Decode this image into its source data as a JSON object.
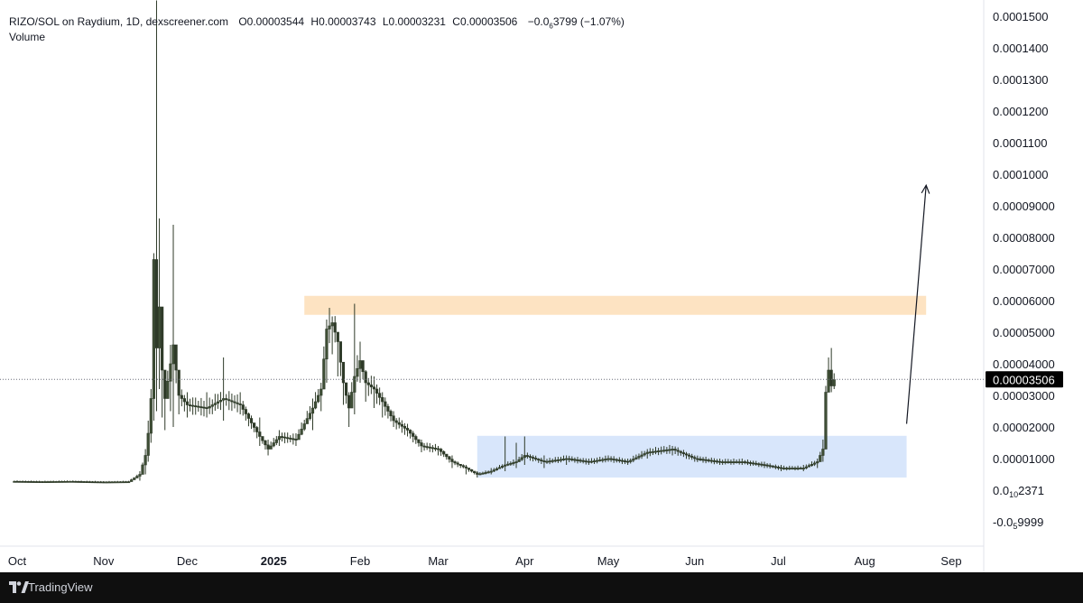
{
  "header": {
    "symbol": "RIZO/SOL on Raydium, 1D, dexscreener.com",
    "open_label": "O",
    "open_value": "0.00003544",
    "high_label": "H",
    "high_value": "0.00003743",
    "low_label": "L",
    "low_value": "0.00003231",
    "close_label": "C",
    "close_value": "0.00003506",
    "change_main": "−0.0",
    "change_sub": "6",
    "change_tail": "3799 (−1.07%)",
    "volume_label": "Volume"
  },
  "footer": {
    "brand": "TradingView"
  },
  "colors": {
    "candle": "#2e3a28",
    "candle_body_up": "#ffffff",
    "resistance_zone": "#fde3c2",
    "accumulation_zone": "#d8e6fb",
    "price_tag": "#000000",
    "background": "#ffffff"
  },
  "chart_data": {
    "type": "candlestick",
    "x_ticks": [
      {
        "label": "Oct",
        "date": "2024-10-01"
      },
      {
        "label": "Nov",
        "date": "2024-11-01"
      },
      {
        "label": "Dec",
        "date": "2024-12-01"
      },
      {
        "label": "2025",
        "date": "2025-01-01",
        "bold": true
      },
      {
        "label": "Feb",
        "date": "2025-02-01"
      },
      {
        "label": "Mar",
        "date": "2025-03-01"
      },
      {
        "label": "Apr",
        "date": "2025-04-01"
      },
      {
        "label": "May",
        "date": "2025-05-01"
      },
      {
        "label": "Jun",
        "date": "2025-06-01"
      },
      {
        "label": "Jul",
        "date": "2025-07-01"
      },
      {
        "label": "Aug",
        "date": "2025-08-01"
      },
      {
        "label": "Sep",
        "date": "2025-09-01"
      }
    ],
    "y_ticks": [
      {
        "label": "0.0001500",
        "value": 0.00015
      },
      {
        "label": "0.0001400",
        "value": 0.00014
      },
      {
        "label": "0.0001300",
        "value": 0.00013
      },
      {
        "label": "0.0001200",
        "value": 0.00012
      },
      {
        "label": "0.0001100",
        "value": 0.00011
      },
      {
        "label": "0.0001000",
        "value": 0.0001
      },
      {
        "label": "0.00009000",
        "value": 9e-05
      },
      {
        "label": "0.00008000",
        "value": 8e-05
      },
      {
        "label": "0.00007000",
        "value": 7e-05
      },
      {
        "label": "0.00006000",
        "value": 6e-05
      },
      {
        "label": "0.00005000",
        "value": 5e-05
      },
      {
        "label": "0.00004000",
        "value": 4e-05
      },
      {
        "label": "0.00003000",
        "value": 3e-05
      },
      {
        "label": "0.00002000",
        "value": 2e-05
      },
      {
        "label": "0.00001000",
        "value": 1e-05
      }
    ],
    "y_ticks_sub": [
      {
        "main": "0.0",
        "sub": "10",
        "tail": "2371",
        "value": 2.371e-10
      },
      {
        "main": "-0.0",
        "sub": "5",
        "tail": "9999",
        "value": -9.999e-06
      }
    ],
    "ylim": [
      -1.2e-05,
      0.000153
    ],
    "last_price": {
      "label": "0.00003506",
      "value": 3.506e-05
    },
    "zones": [
      {
        "name": "resistance",
        "x_start": "2025-01-12",
        "x_end": "2025-08-23",
        "y_low": 5.55e-05,
        "y_high": 6.15e-05
      },
      {
        "name": "accumulation",
        "x_start": "2025-03-15",
        "x_end": "2025-08-16",
        "y_low": 4e-06,
        "y_high": 1.72e-05
      }
    ],
    "arrow": {
      "from_date": "2025-08-16",
      "from_value": 2.1e-05,
      "to_date": "2025-08-23",
      "to_value": 9.65e-05
    },
    "series": [
      {
        "date": "2024-09-30",
        "value": 2.8e-06
      },
      {
        "date": "2024-10-10",
        "value": 2.7e-06
      },
      {
        "date": "2024-10-20",
        "value": 2.8e-06
      },
      {
        "date": "2024-11-01",
        "value": 2.6e-06
      },
      {
        "date": "2024-11-10",
        "value": 2.7e-06
      },
      {
        "date": "2024-11-14",
        "value": 5e-06,
        "low": 3e-06,
        "high": 6e-06
      },
      {
        "date": "2024-11-16",
        "value": 1.1e-05,
        "low": 5e-06,
        "high": 1.3e-05
      },
      {
        "date": "2024-11-17",
        "value": 1.8e-05,
        "low": 9e-06,
        "high": 2.2e-05
      },
      {
        "date": "2024-11-18",
        "value": 2.9e-05,
        "low": 1.5e-05,
        "high": 3.2e-05
      },
      {
        "date": "2024-11-19",
        "value": 7.3e-05,
        "low": 2.2e-05,
        "high": 7.5e-05
      },
      {
        "date": "2024-11-20",
        "value": 4.5e-05,
        "low": 2.5e-05,
        "high": 0.000155
      },
      {
        "date": "2024-11-21",
        "value": 5.8e-05,
        "low": 3.2e-05,
        "high": 8.6e-05
      },
      {
        "date": "2024-11-22",
        "value": 3.8e-05,
        "low": 2.3e-05,
        "high": 4.8e-05
      },
      {
        "date": "2024-11-23",
        "value": 2.9e-05,
        "low": 1.9e-05,
        "high": 3.6e-05
      },
      {
        "date": "2024-11-25",
        "value": 4e-05,
        "low": 2.5e-05,
        "high": 4.6e-05
      },
      {
        "date": "2024-11-26",
        "value": 4.6e-05,
        "low": 2e-05,
        "high": 8.4e-05
      },
      {
        "date": "2024-11-28",
        "value": 3e-05,
        "low": 2.4e-05,
        "high": 3.8e-05
      },
      {
        "date": "2024-12-01",
        "value": 2.7e-05,
        "low": 2.3e-05,
        "high": 3.1e-05
      },
      {
        "date": "2024-12-08",
        "value": 2.6e-05,
        "low": 2.3e-05,
        "high": 3.1e-05
      },
      {
        "date": "2024-12-14",
        "value": 2.9e-05,
        "low": 2.2e-05,
        "high": 4.2e-05
      },
      {
        "date": "2024-12-20",
        "value": 2.7e-05,
        "low": 2.4e-05,
        "high": 3.1e-05
      },
      {
        "date": "2024-12-27",
        "value": 1.7e-05,
        "low": 1.4e-05,
        "high": 2.3e-05
      },
      {
        "date": "2024-12-30",
        "value": 1.3e-05,
        "low": 1.1e-05,
        "high": 1.6e-05
      },
      {
        "date": "2025-01-03",
        "value": 1.7e-05,
        "low": 1.4e-05,
        "high": 1.9e-05
      },
      {
        "date": "2025-01-09",
        "value": 1.6e-05,
        "low": 1.4e-05,
        "high": 1.8e-05
      },
      {
        "date": "2025-01-15",
        "value": 2.6e-05,
        "low": 1.9e-05,
        "high": 2.9e-05
      },
      {
        "date": "2025-01-18",
        "value": 3.2e-05,
        "low": 2.5e-05,
        "high": 3.4e-05
      },
      {
        "date": "2025-01-20",
        "value": 5.1e-05,
        "low": 3.4e-05,
        "high": 5.4e-05
      },
      {
        "date": "2025-01-22",
        "value": 5.3e-05,
        "low": 4.3e-05,
        "high": 5.5e-05
      },
      {
        "date": "2025-01-24",
        "value": 4.7e-05,
        "low": 3.6e-05,
        "high": 5e-05
      },
      {
        "date": "2025-01-26",
        "value": 3.4e-05,
        "low": 2.7e-05,
        "high": 4e-05
      },
      {
        "date": "2025-01-28",
        "value": 2.6e-05,
        "low": 2e-05,
        "high": 3.1e-05
      },
      {
        "date": "2025-01-30",
        "value": 3.6e-05,
        "low": 2.4e-05,
        "high": 5.9e-05
      },
      {
        "date": "2025-02-01",
        "value": 4.1e-05,
        "low": 3.4e-05,
        "high": 4.7e-05
      },
      {
        "date": "2025-02-03",
        "value": 3.4e-05,
        "low": 2.8e-05,
        "high": 3.8e-05
      },
      {
        "date": "2025-02-06",
        "value": 3.2e-05,
        "low": 2.6e-05,
        "high": 3.6e-05
      },
      {
        "date": "2025-02-09",
        "value": 2.8e-05,
        "low": 2.3e-05,
        "high": 3.1e-05
      },
      {
        "date": "2025-02-13",
        "value": 2.2e-05,
        "low": 2e-05,
        "high": 2.5e-05
      },
      {
        "date": "2025-02-18",
        "value": 1.9e-05,
        "low": 1.7e-05,
        "high": 2.1e-05
      },
      {
        "date": "2025-02-23",
        "value": 1.4e-05,
        "low": 1.2e-05,
        "high": 1.6e-05
      },
      {
        "date": "2025-03-01",
        "value": 1.3e-05,
        "low": 1.1e-05,
        "high": 1.4e-05
      },
      {
        "date": "2025-03-06",
        "value": 9e-06,
        "low": 7e-06,
        "high": 1.1e-05
      },
      {
        "date": "2025-03-11",
        "value": 7e-06,
        "low": 5e-06,
        "high": 8e-06
      },
      {
        "date": "2025-03-15",
        "value": 5e-06,
        "low": 4e-06,
        "high": 6e-06
      },
      {
        "date": "2025-03-20",
        "value": 6e-06,
        "low": 5e-06,
        "high": 7e-06
      },
      {
        "date": "2025-03-25",
        "value": 8e-06,
        "low": 6e-06,
        "high": 1.7e-05
      },
      {
        "date": "2025-03-29",
        "value": 9e-06,
        "low": 7e-06,
        "high": 1.5e-05
      },
      {
        "date": "2025-04-01",
        "value": 1.1e-05,
        "low": 8e-06,
        "high": 1.7e-05
      },
      {
        "date": "2025-04-08",
        "value": 9e-06,
        "low": 7e-06,
        "high": 1.1e-05
      },
      {
        "date": "2025-04-16",
        "value": 1e-05,
        "low": 8e-06,
        "high": 1.1e-05
      },
      {
        "date": "2025-04-24",
        "value": 9e-06,
        "low": 8e-06,
        "high": 1e-05
      },
      {
        "date": "2025-05-01",
        "value": 1e-05,
        "low": 9e-06,
        "high": 1.1e-05
      },
      {
        "date": "2025-05-08",
        "value": 9e-06,
        "low": 8e-06,
        "high": 1e-05
      },
      {
        "date": "2025-05-15",
        "value": 1.2e-05,
        "low": 1e-05,
        "high": 1.3e-05
      },
      {
        "date": "2025-05-24",
        "value": 1.3e-05,
        "low": 1.1e-05,
        "high": 1.4e-05
      },
      {
        "date": "2025-06-01",
        "value": 1e-05,
        "low": 9e-06,
        "high": 1.1e-05
      },
      {
        "date": "2025-06-10",
        "value": 9e-06,
        "low": 8e-06,
        "high": 1e-05
      },
      {
        "date": "2025-06-18",
        "value": 9e-06,
        "low": 8e-06,
        "high": 1e-05
      },
      {
        "date": "2025-06-26",
        "value": 8e-06,
        "low": 7e-06,
        "high": 9e-06
      },
      {
        "date": "2025-07-02",
        "value": 7e-06,
        "low": 6e-06,
        "high": 8e-06
      },
      {
        "date": "2025-07-10",
        "value": 7e-06,
        "low": 6e-06,
        "high": 8e-06
      },
      {
        "date": "2025-07-15",
        "value": 9e-06,
        "low": 7e-06,
        "high": 1e-05
      },
      {
        "date": "2025-07-17",
        "value": 1.3e-05,
        "low": 9e-06,
        "high": 1.6e-05
      },
      {
        "date": "2025-07-18",
        "value": 3.1e-05,
        "low": 1.5e-05,
        "high": 3.3e-05
      },
      {
        "date": "2025-07-19",
        "value": 3.8e-05,
        "low": 3.1e-05,
        "high": 4.2e-05
      },
      {
        "date": "2025-07-20",
        "value": 3.3e-05,
        "low": 3.1e-05,
        "high": 4.5e-05
      },
      {
        "date": "2025-07-21",
        "value": 3.5e-05,
        "low": 3.2e-05,
        "high": 3.7e-05
      }
    ]
  }
}
